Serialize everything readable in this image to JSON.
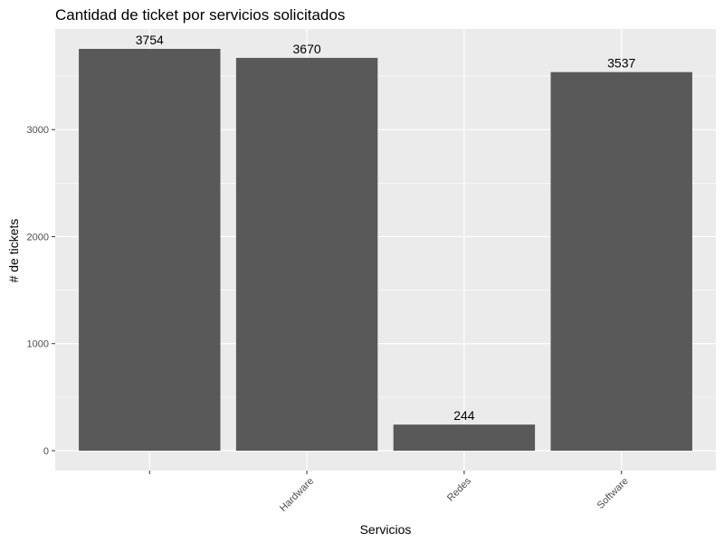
{
  "chart_data": {
    "type": "bar",
    "title": "Cantidad de ticket por servicios solicitados",
    "xlabel": "Servicios",
    "ylabel": "# de tickets",
    "categories": [
      "",
      "Hardware",
      "Redes",
      "Software"
    ],
    "values": [
      3754,
      3670,
      244,
      3537
    ],
    "data_labels": [
      "3754",
      "3670",
      "244",
      "3537"
    ],
    "ylim": [
      0,
      3940
    ],
    "y_ticks": [
      0,
      1000,
      2000,
      3000
    ],
    "y_tick_labels": [
      "0",
      "1000",
      "2000",
      "3000"
    ],
    "grid": true,
    "legend": "none",
    "colors": {
      "bar": "#595959",
      "panel": "#ebebeb",
      "grid": "#ffffff",
      "tick": "#333333"
    }
  }
}
